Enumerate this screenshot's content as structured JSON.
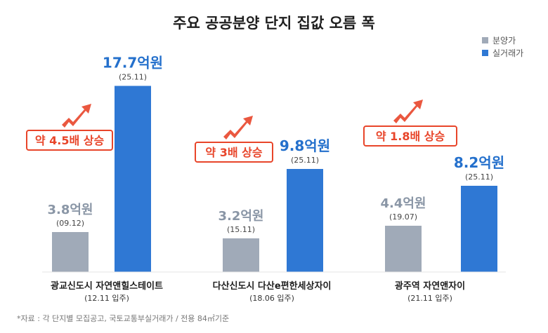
{
  "chart_data": {
    "type": "bar",
    "title": "주요 공공분양 단지 집값 오름 폭",
    "legend": {
      "position": "top-right",
      "entries": [
        {
          "name": "분양가",
          "color": "#a0aab8"
        },
        {
          "name": "실거래가",
          "color": "#2f78d4"
        }
      ]
    },
    "ylim": [
      0,
      20
    ],
    "grid": false,
    "categories": [
      {
        "name": "광교신도시 자연앤힐스테이트",
        "sub": "(12.11 입주)"
      },
      {
        "name": "다산신도시 다산e편한세상자이",
        "sub": "(18.06 입주)"
      },
      {
        "name": "광주역 자연앤자이",
        "sub": "(21.11 입주)"
      }
    ],
    "series": [
      {
        "name": "분양가",
        "color": "#a0aab8",
        "values": [
          3.8,
          3.2,
          4.4
        ],
        "labels": [
          "3.8억원",
          "3.2억원",
          "4.4억원"
        ],
        "dates": [
          "(09.12)",
          "(15.11)",
          "(19.07)"
        ]
      },
      {
        "name": "실거래가",
        "color": "#2f78d4",
        "values": [
          17.7,
          9.8,
          8.2
        ],
        "labels": [
          "17.7억원",
          "9.8억원",
          "8.2억원"
        ],
        "dates": [
          "(25.11)",
          "(25.11)",
          "(25.11)"
        ]
      }
    ],
    "annotations": [
      "약 4.5배 상승",
      "약 3배 상승",
      "약 1.8배 상승"
    ],
    "accent_color": "#e8452a",
    "footnote": "*자료 : 각 단지별 모집공고, 국토교통부실거래가 / 전용 84㎡기준"
  }
}
